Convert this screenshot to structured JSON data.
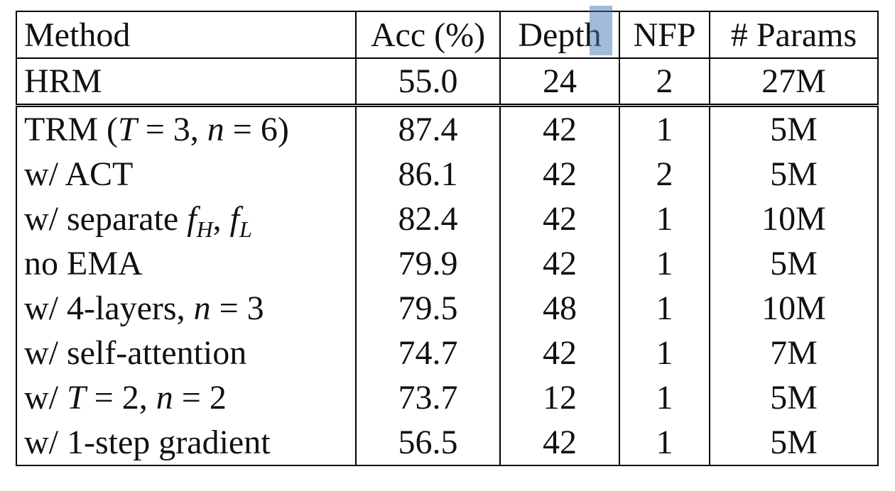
{
  "table": {
    "header": [
      "Method",
      "Acc (%)",
      "Depth",
      "NFP",
      "# Params"
    ],
    "rows": [
      {
        "method": [
          {
            "text": "HRM"
          }
        ],
        "cells": [
          "55.0",
          "24",
          "2",
          "27M"
        ]
      },
      {
        "method": [
          {
            "text": "TRM ("
          },
          {
            "text": "T",
            "style": "italic"
          },
          {
            "text": " = 3, "
          },
          {
            "text": "n",
            "style": "italic"
          },
          {
            "text": " = 6)"
          }
        ],
        "cells": [
          "87.4",
          "42",
          "1",
          "5M"
        ]
      },
      {
        "method": [
          {
            "text": "w/ ACT"
          }
        ],
        "cells": [
          "86.1",
          "42",
          "2",
          "5M"
        ]
      },
      {
        "method": [
          {
            "text": "w/ separate "
          },
          {
            "text": "f",
            "style": "italic"
          },
          {
            "text": "H",
            "style": "subscript"
          },
          {
            "text": ", "
          },
          {
            "text": "f",
            "style": "italic"
          },
          {
            "text": "L",
            "style": "subscript"
          }
        ],
        "cells": [
          "82.4",
          "42",
          "1",
          "10M"
        ]
      },
      {
        "method": [
          {
            "text": "no EMA"
          }
        ],
        "cells": [
          "79.9",
          "42",
          "1",
          "5M"
        ]
      },
      {
        "method": [
          {
            "text": "w/ 4-layers, "
          },
          {
            "text": "n",
            "style": "italic"
          },
          {
            "text": " = 3"
          }
        ],
        "cells": [
          "79.5",
          "48",
          "1",
          "10M"
        ]
      },
      {
        "method": [
          {
            "text": "w/ self-attention"
          }
        ],
        "cells": [
          "74.7",
          "42",
          "1",
          "7M"
        ]
      },
      {
        "method": [
          {
            "text": "w/ "
          },
          {
            "text": "T",
            "style": "italic"
          },
          {
            "text": " = 2, "
          },
          {
            "text": "n",
            "style": "italic"
          },
          {
            "text": " = 2"
          }
        ],
        "cells": [
          "73.7",
          "12",
          "1",
          "5M"
        ]
      },
      {
        "method": [
          {
            "text": "w/ 1-step gradient"
          }
        ],
        "cells": [
          "56.5",
          "42",
          "1",
          "5M"
        ]
      }
    ]
  }
}
